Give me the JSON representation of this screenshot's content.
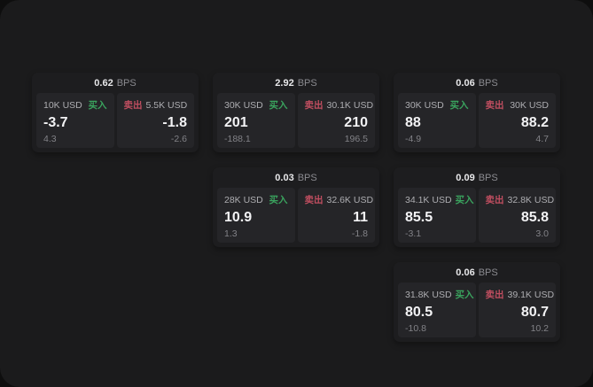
{
  "colors": {
    "buy_green": "#3aa35e",
    "sell_red": "#c04e60",
    "window_bg": "#1b1b1c",
    "card_bg": "#1d1d1f",
    "tile_bg": "#252528"
  },
  "cards": [
    {
      "bps": "0.62",
      "unit": "BPS",
      "buy": {
        "amount": "10K USD",
        "side": "买入",
        "value": "-3.7",
        "delta": "4.3"
      },
      "sell": {
        "side": "卖出",
        "amount": "5.5K USD",
        "value": "-1.8",
        "delta": "-2.6"
      }
    },
    {
      "bps": "2.92",
      "unit": "BPS",
      "buy": {
        "amount": "30K USD",
        "side": "买入",
        "value": "201",
        "delta": "-188.1"
      },
      "sell": {
        "side": "卖出",
        "amount": "30.1K USD",
        "value": "210",
        "delta": "196.5"
      }
    },
    {
      "bps": "0.06",
      "unit": "BPS",
      "buy": {
        "amount": "30K USD",
        "side": "买入",
        "value": "88",
        "delta": "-4.9"
      },
      "sell": {
        "side": "卖出",
        "amount": "30K USD",
        "value": "88.2",
        "delta": "4.7"
      }
    },
    {
      "bps": "0.03",
      "unit": "BPS",
      "buy": {
        "amount": "28K USD",
        "side": "买入",
        "value": "10.9",
        "delta": "1.3"
      },
      "sell": {
        "side": "卖出",
        "amount": "32.6K USD",
        "value": "11",
        "delta": "-1.8"
      }
    },
    {
      "bps": "0.09",
      "unit": "BPS",
      "buy": {
        "amount": "34.1K USD",
        "side": "买入",
        "value": "85.5",
        "delta": "-3.1"
      },
      "sell": {
        "side": "卖出",
        "amount": "32.8K USD",
        "value": "85.8",
        "delta": "3.0"
      }
    },
    {
      "bps": "0.06",
      "unit": "BPS",
      "buy": {
        "amount": "31.8K USD",
        "side": "买入",
        "value": "80.5",
        "delta": "-10.8"
      },
      "sell": {
        "side": "卖出",
        "amount": "39.1K USD",
        "value": "80.7",
        "delta": "10.2"
      }
    }
  ]
}
